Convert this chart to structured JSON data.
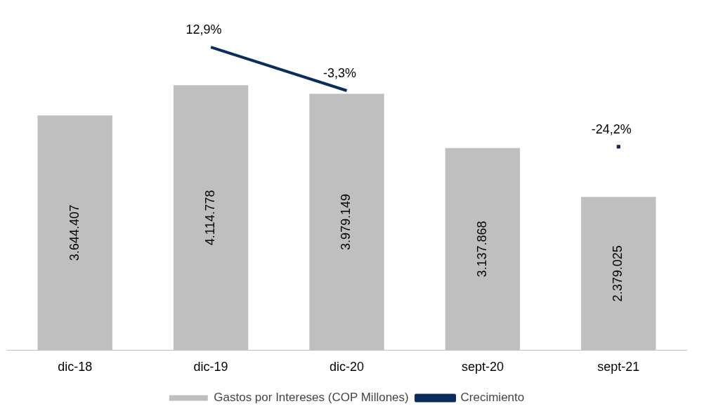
{
  "chart_data": {
    "type": "bar",
    "categories": [
      "dic-18",
      "dic-19",
      "dic-20",
      "sept-20",
      "sept-21"
    ],
    "series": [
      {
        "name": "Gastos por Intereses (COP Millones)",
        "color": "#bfbfbf",
        "values": [
          3644407,
          4114778,
          3979149,
          3137868,
          2379025
        ],
        "value_labels": [
          "3.644.407",
          "4.114.778",
          "3.979.149",
          "3.137.868",
          "2.379.025"
        ]
      },
      {
        "name": "Crecimiento",
        "type": "line",
        "axis": "y2",
        "color": "#0d2c5e",
        "values": [
          null,
          12.9,
          -3.3,
          null,
          -24.2
        ],
        "value_labels": [
          null,
          "12,9%",
          "-3,3%",
          null,
          "-24,2%"
        ]
      }
    ],
    "tick_labels": "x",
    "grid": false,
    "legend": "bottom"
  }
}
